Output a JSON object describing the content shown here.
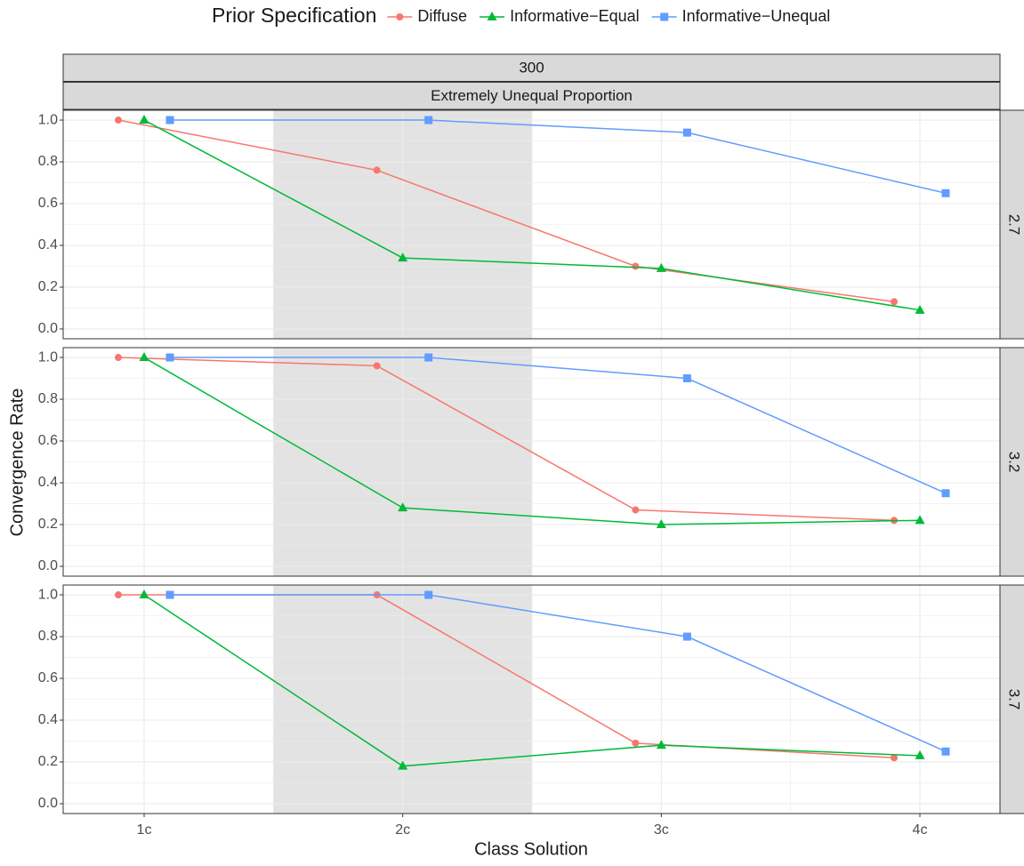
{
  "chart_data": {
    "type": "line",
    "legend_title": "Prior Specification",
    "series": [
      {
        "name": "Diffuse",
        "color": "#F8766D",
        "marker": "circle"
      },
      {
        "name": "Informative−Equal",
        "color": "#00BA38",
        "marker": "triangle"
      },
      {
        "name": "Informative−Unequal",
        "color": "#619CFF",
        "marker": "square"
      }
    ],
    "strips": [
      "300",
      "Extremely Unequal Proportion"
    ],
    "x_label": "Class Solution",
    "y_label": "Convergence Rate",
    "categories": [
      "1c",
      "2c",
      "3c",
      "4c"
    ],
    "shaded_x_range": [
      1.5,
      2.5
    ],
    "ylim": [
      -0.047,
      1.047
    ],
    "yticks": [
      {
        "value": 0,
        "label": "0.0"
      },
      0.2,
      0.4,
      0.6,
      0.8,
      {
        "value": 1,
        "label": "1.0"
      }
    ],
    "grid": true,
    "panels": [
      {
        "label": "2.7",
        "values": [
          [
            1.0,
            0.76,
            0.3,
            0.13
          ],
          [
            1.0,
            0.34,
            0.29,
            0.09
          ],
          [
            1.0,
            1.0,
            0.94,
            0.65
          ]
        ]
      },
      {
        "label": "3.2",
        "values": [
          [
            1.0,
            0.96,
            0.27,
            0.22
          ],
          [
            1.0,
            0.28,
            0.2,
            0.22
          ],
          [
            1.0,
            1.0,
            0.9,
            0.35
          ]
        ]
      },
      {
        "label": "3.7",
        "values": [
          [
            1.0,
            1.0,
            0.29,
            0.22
          ],
          [
            1.0,
            0.18,
            0.28,
            0.23
          ],
          [
            1.0,
            1.0,
            0.8,
            0.25
          ]
        ]
      }
    ]
  }
}
